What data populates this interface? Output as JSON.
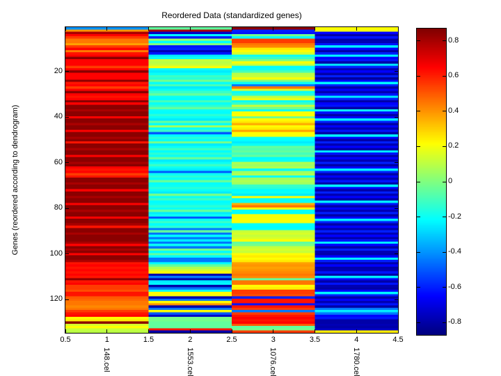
{
  "figure": {
    "title": "Reordered Data (standardized genes)",
    "ylabel": "Genes (reordered according to dendrogram)"
  },
  "chart_data": {
    "type": "heatmap",
    "title": "Reordered Data (standardized genes)",
    "ylabel": "Genes (reordered according to dendrogram)",
    "columns": [
      "148.cel",
      "1553.cel",
      "1076.cel",
      "1780.cel"
    ],
    "x_ticks": [
      0.5,
      1,
      1.5,
      2,
      2.5,
      3,
      3.5,
      4,
      4.5
    ],
    "y_ticks": [
      20,
      40,
      60,
      80,
      100,
      120
    ],
    "x_range": [
      0.5,
      4.5
    ],
    "n_rows": 134,
    "colormap": "jet",
    "value_range": [
      -0.87,
      0.87
    ],
    "colorbar_ticks": [
      0.8,
      0.6,
      0.4,
      0.2,
      0,
      -0.2,
      -0.4,
      -0.6,
      -0.8
    ],
    "grid": false,
    "values": [
      [
        -0.4,
        -0.05,
        0.85,
        0.22
      ],
      [
        0.4,
        0.8,
        -0.6,
        0.2
      ],
      [
        0.8,
        -0.75,
        -0.62,
        -0.65
      ],
      [
        0.65,
        -0.22,
        -0.02,
        -0.8
      ],
      [
        0.55,
        -0.6,
        -0.2,
        -0.62
      ],
      [
        0.45,
        0.05,
        0.55,
        -0.8
      ],
      [
        0.45,
        -0.22,
        0.55,
        -0.78
      ],
      [
        0.38,
        0.0,
        0.45,
        -0.62
      ],
      [
        0.55,
        -0.62,
        0.42,
        -0.25
      ],
      [
        0.65,
        -0.6,
        0.25,
        -0.65
      ],
      [
        0.45,
        -0.78,
        0.22,
        -0.8
      ],
      [
        0.62,
        -0.62,
        0.15,
        -0.6
      ],
      [
        0.65,
        -0.25,
        -0.2,
        -0.22
      ],
      [
        0.85,
        -0.2,
        -0.12,
        -0.65
      ],
      [
        0.65,
        0.12,
        0.0,
        -0.62
      ],
      [
        0.65,
        0.1,
        0.2,
        -0.8
      ],
      [
        0.65,
        0.12,
        0.12,
        -0.25
      ],
      [
        0.55,
        0.2,
        -0.22,
        -0.6
      ],
      [
        0.65,
        -0.2,
        -0.2,
        -0.78
      ],
      [
        0.85,
        -0.25,
        -0.1,
        -0.65
      ],
      [
        0.65,
        -0.2,
        0.1,
        -0.8
      ],
      [
        0.65,
        -0.12,
        0.12,
        -0.6
      ],
      [
        0.65,
        -0.15,
        0.2,
        -0.82
      ],
      [
        0.85,
        -0.02,
        0.0,
        -0.65
      ],
      [
        0.62,
        -0.2,
        -0.2,
        -0.22
      ],
      [
        0.65,
        -0.1,
        -0.45,
        -0.6
      ],
      [
        0.55,
        -0.25,
        0.45,
        -0.8
      ],
      [
        0.65,
        -0.2,
        0.15,
        -0.65
      ],
      [
        0.85,
        -0.12,
        -0.2,
        -0.78
      ],
      [
        0.65,
        -0.05,
        -0.15,
        -0.62
      ],
      [
        0.62,
        -0.2,
        0.1,
        -0.25
      ],
      [
        0.65,
        -0.22,
        0.18,
        -0.6
      ],
      [
        0.85,
        -0.1,
        -0.2,
        -0.8
      ],
      [
        0.65,
        -0.2,
        -0.12,
        -0.65
      ],
      [
        0.85,
        -0.15,
        0.12,
        -0.62
      ],
      [
        0.85,
        -0.05,
        -0.02,
        -0.8
      ],
      [
        0.8,
        -0.2,
        -0.2,
        -0.2
      ],
      [
        0.85,
        -0.22,
        0.2,
        -0.62
      ],
      [
        0.85,
        -0.15,
        0.22,
        -0.8
      ],
      [
        0.65,
        -0.2,
        -0.02,
        -0.65
      ],
      [
        0.85,
        -0.25,
        0.22,
        -0.25
      ],
      [
        0.85,
        -0.05,
        0.25,
        -0.6
      ],
      [
        0.8,
        -0.2,
        0.35,
        -0.8
      ],
      [
        0.85,
        0.05,
        0.22,
        -0.65
      ],
      [
        0.85,
        -0.2,
        0.25,
        -0.78
      ],
      [
        0.65,
        -0.12,
        0.38,
        -0.62
      ],
      [
        0.85,
        -0.5,
        0.22,
        -0.8
      ],
      [
        0.85,
        -0.22,
        0.2,
        -0.22
      ],
      [
        0.8,
        -0.15,
        -0.2,
        -0.65
      ],
      [
        0.85,
        -0.2,
        -0.22,
        -0.8
      ],
      [
        0.62,
        -0.02,
        -0.25,
        -0.6
      ],
      [
        0.85,
        -0.25,
        -0.2,
        -0.78
      ],
      [
        0.85,
        -0.2,
        -0.05,
        -0.65
      ],
      [
        0.8,
        -0.12,
        -0.08,
        -0.8
      ],
      [
        0.85,
        -0.22,
        -0.05,
        -0.25
      ],
      [
        0.85,
        -0.15,
        -0.1,
        -0.62
      ],
      [
        0.65,
        -0.2,
        -0.05,
        -0.8
      ],
      [
        0.85,
        -0.05,
        -0.22,
        -0.65
      ],
      [
        0.85,
        -0.25,
        -0.2,
        -0.78
      ],
      [
        0.8,
        -0.2,
        0.08,
        -0.6
      ],
      [
        0.85,
        -0.12,
        0.05,
        -0.8
      ],
      [
        0.65,
        -0.2,
        0.08,
        -0.65
      ],
      [
        0.62,
        -0.25,
        -0.22,
        -0.25
      ],
      [
        0.65,
        -0.5,
        0.05,
        -0.6
      ],
      [
        0.55,
        -0.2,
        0.08,
        -0.8
      ],
      [
        0.62,
        -0.15,
        -0.2,
        -0.65
      ],
      [
        0.85,
        -0.2,
        0.05,
        -0.78
      ],
      [
        0.85,
        -0.05,
        0.08,
        -0.62
      ],
      [
        0.8,
        -0.22,
        0.05,
        -0.8
      ],
      [
        0.85,
        -0.2,
        -0.12,
        -0.22
      ],
      [
        0.85,
        -0.15,
        -0.15,
        -0.65
      ],
      [
        0.65,
        -0.2,
        -0.22,
        -0.8
      ],
      [
        0.85,
        -0.25,
        -0.2,
        -0.6
      ],
      [
        0.85,
        -0.02,
        -0.25,
        -0.78
      ],
      [
        0.8,
        -0.2,
        0.22,
        -0.65
      ],
      [
        0.85,
        -0.12,
        -0.22,
        -0.8
      ],
      [
        0.85,
        -0.22,
        -0.2,
        -0.25
      ],
      [
        0.65,
        -0.2,
        0.35,
        -0.62
      ],
      [
        0.85,
        -0.15,
        0.45,
        -0.8
      ],
      [
        0.85,
        -0.2,
        0.22,
        -0.65
      ],
      [
        0.8,
        -0.05,
        -0.2,
        -0.78
      ],
      [
        0.85,
        -0.25,
        -0.22,
        -0.6
      ],
      [
        0.85,
        -0.2,
        0.22,
        -0.8
      ],
      [
        0.65,
        -0.5,
        0.2,
        -0.65
      ],
      [
        0.85,
        -0.2,
        0.22,
        -0.25
      ],
      [
        0.85,
        -0.12,
        0.2,
        -0.6
      ],
      [
        0.8,
        -0.22,
        -0.2,
        -0.8
      ],
      [
        0.62,
        -0.15,
        -0.22,
        -0.65
      ],
      [
        0.85,
        -0.45,
        -0.2,
        -0.8
      ],
      [
        0.85,
        -0.05,
        0.12,
        -0.6
      ],
      [
        0.8,
        -0.45,
        0.15,
        -0.78
      ],
      [
        0.85,
        -0.22,
        0.12,
        -0.65
      ],
      [
        0.85,
        -0.45,
        0.15,
        -0.8
      ],
      [
        0.85,
        -0.25,
        0.22,
        -0.62
      ],
      [
        0.8,
        -0.45,
        -0.05,
        -0.25
      ],
      [
        0.65,
        -0.2,
        -0.02,
        -0.65
      ],
      [
        0.85,
        -0.45,
        0.12,
        -0.8
      ],
      [
        0.8,
        -0.02,
        0.15,
        -0.6
      ],
      [
        0.85,
        -0.22,
        0.12,
        -0.78
      ],
      [
        0.65,
        -0.05,
        0.22,
        -0.8
      ],
      [
        0.85,
        -0.22,
        0.25,
        -0.65
      ],
      [
        0.85,
        -0.45,
        0.22,
        -0.22
      ],
      [
        0.8,
        -0.45,
        0.25,
        -0.6
      ],
      [
        0.62,
        -0.22,
        0.38,
        -0.8
      ],
      [
        0.65,
        -0.05,
        0.4,
        -0.65
      ],
      [
        0.62,
        0.08,
        0.38,
        -0.8
      ],
      [
        0.65,
        0.15,
        0.4,
        -0.78
      ],
      [
        0.62,
        0.22,
        0.42,
        -0.62
      ],
      [
        0.65,
        -0.8,
        0.45,
        -0.8
      ],
      [
        0.62,
        -0.45,
        0.42,
        -0.25
      ],
      [
        0.85,
        -0.8,
        -0.05,
        -0.65
      ],
      [
        0.62,
        -0.25,
        0.45,
        -0.8
      ],
      [
        0.65,
        -0.22,
        0.45,
        -0.62
      ],
      [
        0.55,
        -0.8,
        0.22,
        -0.78
      ],
      [
        0.55,
        -0.45,
        0.25,
        -0.8
      ],
      [
        0.52,
        -0.22,
        0.55,
        -0.65
      ],
      [
        0.62,
        0.22,
        0.55,
        -0.22
      ],
      [
        0.62,
        0.2,
        0.52,
        -0.6
      ],
      [
        0.5,
        -0.8,
        -0.6,
        -0.8
      ],
      [
        0.48,
        -0.45,
        0.62,
        -0.65
      ],
      [
        0.45,
        0.22,
        0.62,
        -0.78
      ],
      [
        0.45,
        0.4,
        -0.62,
        -0.62
      ],
      [
        0.42,
        -0.8,
        0.62,
        -0.8
      ],
      [
        0.45,
        -0.45,
        0.55,
        -0.45
      ],
      [
        0.55,
        0.22,
        -0.45,
        -0.25
      ],
      [
        0.62,
        -0.5,
        0.55,
        -0.45
      ],
      [
        0.65,
        -0.75,
        0.62,
        -0.65
      ],
      [
        0.22,
        -0.02,
        0.65,
        -0.62
      ],
      [
        0.25,
        -0.02,
        0.62,
        -0.8
      ],
      [
        0.85,
        -0.05,
        0.65,
        -0.8
      ],
      [
        0.15,
        -0.05,
        0.5,
        -0.78
      ],
      [
        0.22,
        -0.05,
        -0.05,
        -0.8
      ],
      [
        0.12,
        0.62,
        -0.02,
        -0.75
      ],
      [
        0.1,
        -0.8,
        0.55,
        0.25
      ]
    ]
  }
}
